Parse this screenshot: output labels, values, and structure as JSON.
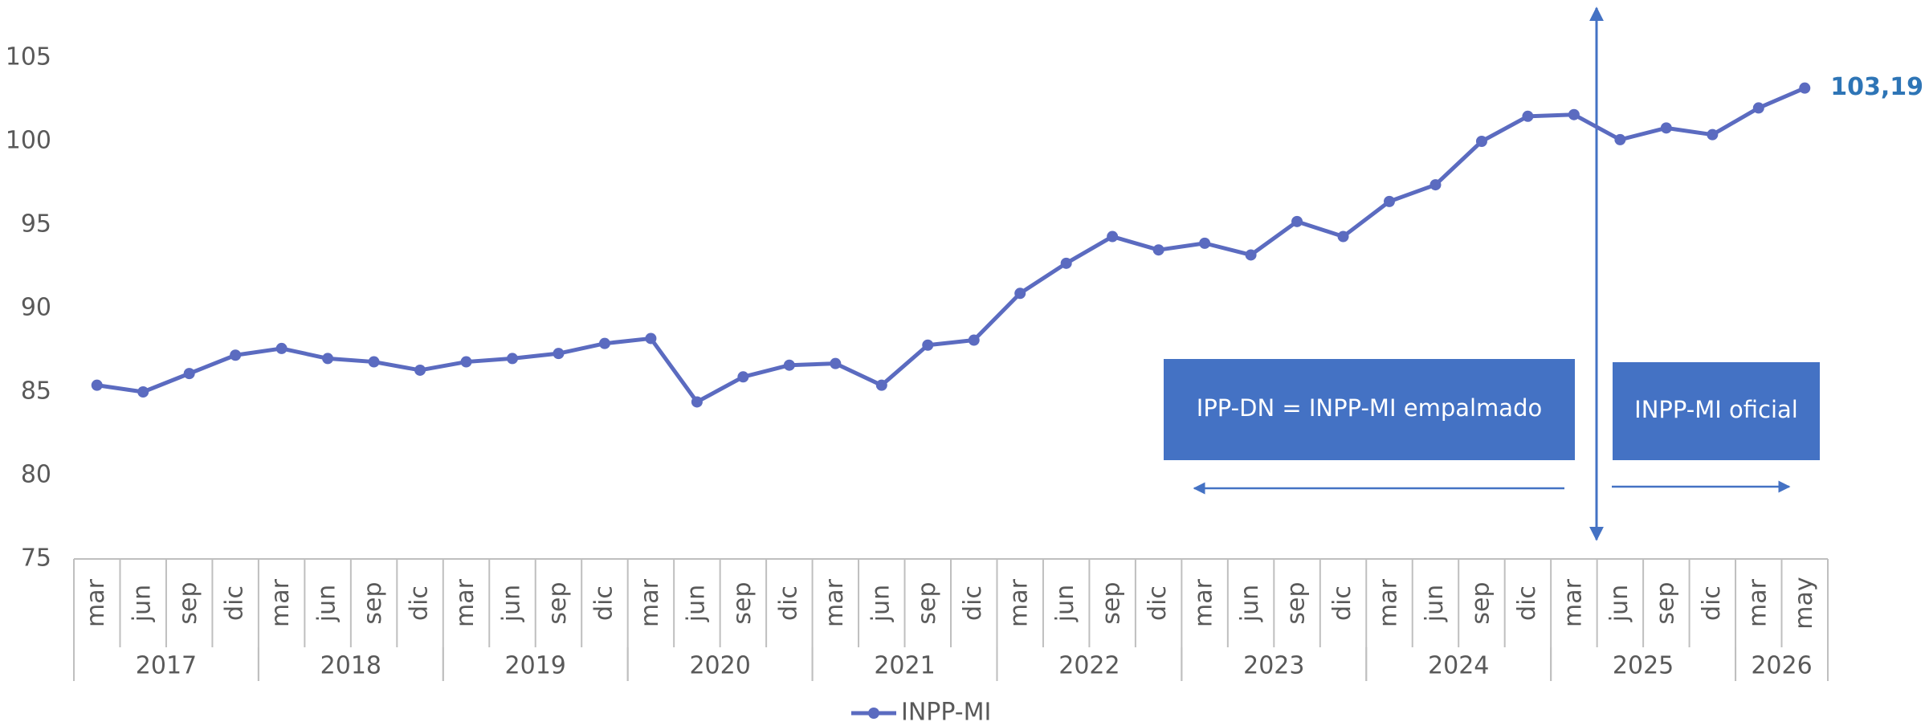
{
  "chart_data": {
    "type": "line",
    "categories": [
      "mar",
      "jun",
      "sep",
      "dic",
      "mar",
      "jun",
      "sep",
      "dic",
      "mar",
      "jun",
      "sep",
      "dic",
      "mar",
      "jun",
      "sep",
      "dic",
      "mar",
      "jun",
      "sep",
      "dic",
      "mar",
      "jun",
      "sep",
      "dic",
      "mar",
      "jun",
      "sep",
      "dic",
      "mar",
      "jun",
      "sep",
      "dic",
      "mar",
      "jun",
      "sep",
      "dic",
      "mar",
      "may"
    ],
    "groups": [
      {
        "label": "2017",
        "span": 4
      },
      {
        "label": "2018",
        "span": 4
      },
      {
        "label": "2019",
        "span": 4
      },
      {
        "label": "2020",
        "span": 4
      },
      {
        "label": "2021",
        "span": 4
      },
      {
        "label": "2022",
        "span": 4
      },
      {
        "label": "2023",
        "span": 4
      },
      {
        "label": "2024",
        "span": 4
      },
      {
        "label": "2025",
        "span": 4
      },
      {
        "label": "2026",
        "span": 2
      }
    ],
    "series": [
      {
        "name": "INPP-MI",
        "color": "#5b6bc0",
        "values": [
          85.4,
          85.0,
          86.1,
          87.2,
          87.6,
          87.0,
          86.8,
          86.3,
          86.8,
          87.0,
          87.3,
          87.9,
          88.2,
          84.4,
          85.9,
          86.6,
          86.7,
          85.4,
          87.8,
          88.1,
          90.9,
          92.7,
          94.3,
          93.5,
          93.9,
          93.2,
          95.2,
          94.3,
          96.4,
          97.4,
          100.0,
          101.5,
          101.6,
          100.1,
          100.8,
          100.4,
          102.0,
          103.19
        ],
        "value_labels": [
          null,
          null,
          null,
          null,
          null,
          null,
          null,
          null,
          null,
          null,
          null,
          null,
          null,
          null,
          null,
          null,
          null,
          null,
          null,
          null,
          null,
          null,
          null,
          null,
          null,
          null,
          null,
          null,
          null,
          null,
          null,
          null,
          null,
          null,
          null,
          null,
          null,
          "103,19"
        ]
      }
    ],
    "ylim": [
      75,
      105
    ],
    "yticks": [
      75,
      80,
      85,
      90,
      95,
      100,
      105
    ],
    "grid": false,
    "annotations": [
      {
        "text": "IPP-DN = INPP-MI empalmado",
        "color": "#4472c4"
      },
      {
        "text": "INPP-MI oficial",
        "color": "#4472c4"
      }
    ],
    "legend": "bottom"
  }
}
